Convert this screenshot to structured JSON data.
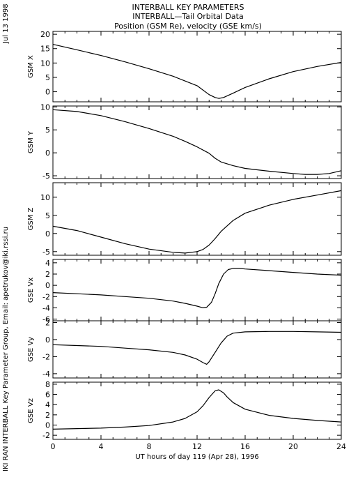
{
  "header": {
    "line1": "INTERBALL KEY PARAMETERS",
    "line2": "INTERBALL—Tail Orbital Data",
    "line3": "Position (GSM Re), velocity (GSE km/s)"
  },
  "side": {
    "date": "Jul 13 1998",
    "credit": "IKI RAN INTERBALL Key Parameter Group, Email: apetrukov@iki.rssi.ru"
  },
  "chart_data": [
    {
      "type": "line",
      "ylabel": "GSM X",
      "ylim": [
        -3.5,
        21
      ],
      "yticks": [
        0,
        5,
        10,
        15,
        20
      ],
      "ytick_labels": [
        "0",
        "5",
        "10",
        "15",
        "20"
      ],
      "x": [
        0,
        2,
        4,
        6,
        8,
        10,
        12,
        13,
        13.5,
        13.8,
        14.2,
        15,
        16,
        18,
        20,
        22,
        24
      ],
      "values": [
        16.5,
        14.6,
        12.6,
        10.4,
        8.0,
        5.4,
        2.1,
        -1.0,
        -2.0,
        -2.3,
        -2.0,
        -0.5,
        1.5,
        4.5,
        7.0,
        8.8,
        10.2
      ]
    },
    {
      "type": "line",
      "ylabel": "GSM Y",
      "ylim": [
        -5.6,
        10.2
      ],
      "yticks": [
        -5,
        0,
        5,
        10
      ],
      "ytick_labels": [
        "-5",
        "0",
        "5",
        "10"
      ],
      "x": [
        0,
        2,
        4,
        6,
        8,
        10,
        11,
        12,
        13,
        13.5,
        14,
        15,
        16,
        18,
        20,
        21,
        22,
        23,
        24
      ],
      "values": [
        9.4,
        9.0,
        8.1,
        6.8,
        5.3,
        3.6,
        2.5,
        1.3,
        -0.1,
        -1.2,
        -2.0,
        -2.8,
        -3.4,
        -4.0,
        -4.5,
        -4.7,
        -4.7,
        -4.5,
        -3.9
      ]
    },
    {
      "type": "line",
      "ylabel": "GSM Z",
      "ylim": [
        -6,
        14
      ],
      "yticks": [
        -5,
        0,
        5,
        10
      ],
      "ytick_labels": [
        "-5",
        "0",
        "5",
        "10"
      ],
      "x": [
        0,
        2,
        4,
        6,
        8,
        10,
        11,
        12,
        12.5,
        13,
        13.5,
        14,
        15,
        16,
        18,
        20,
        22,
        24
      ],
      "values": [
        2.0,
        0.8,
        -1.0,
        -2.8,
        -4.3,
        -5.2,
        -5.4,
        -5.0,
        -4.4,
        -3.2,
        -1.4,
        0.6,
        3.6,
        5.6,
        7.8,
        9.4,
        10.6,
        11.8
      ]
    },
    {
      "type": "line",
      "ylabel": "GSE Vx",
      "ylim": [
        -6.3,
        4.6
      ],
      "yticks": [
        -6,
        -4,
        -2,
        0,
        2,
        4
      ],
      "ytick_labels": [
        "-6",
        "-4",
        "-2",
        "0",
        "2",
        "4"
      ],
      "x": [
        0,
        2,
        4,
        6,
        8,
        10,
        11,
        12,
        12.5,
        12.8,
        13.2,
        13.5,
        13.8,
        14.2,
        14.6,
        15,
        15.5,
        16,
        18,
        20,
        22,
        24
      ],
      "values": [
        -1.3,
        -1.5,
        -1.7,
        -2.0,
        -2.3,
        -2.8,
        -3.2,
        -3.7,
        -4.0,
        -3.9,
        -3.0,
        -1.5,
        0.3,
        2.0,
        2.8,
        3.0,
        3.0,
        2.9,
        2.6,
        2.3,
        2.0,
        1.8
      ]
    },
    {
      "type": "line",
      "ylabel": "GSE Vy",
      "ylim": [
        -4.5,
        2.2
      ],
      "yticks": [
        -4,
        -2,
        0,
        2
      ],
      "ytick_labels": [
        "-4",
        "-2",
        "0",
        "2"
      ],
      "x": [
        0,
        2,
        4,
        6,
        8,
        10,
        11,
        12,
        12.5,
        12.8,
        13.0,
        13.5,
        14,
        14.5,
        15,
        16,
        18,
        20,
        22,
        24
      ],
      "values": [
        -0.6,
        -0.7,
        -0.8,
        -1.0,
        -1.2,
        -1.5,
        -1.8,
        -2.3,
        -2.7,
        -2.9,
        -2.6,
        -1.5,
        -0.4,
        0.4,
        0.75,
        0.9,
        0.95,
        0.95,
        0.9,
        0.85
      ]
    },
    {
      "type": "line",
      "ylabel": "GSE Vz",
      "ylim": [
        -2.8,
        8.4
      ],
      "yticks": [
        -2,
        0,
        2,
        4,
        6,
        8
      ],
      "ytick_labels": [
        "-2",
        "0",
        "2",
        "4",
        "6",
        "8"
      ],
      "x": [
        0,
        2,
        4,
        6,
        8,
        10,
        11,
        12,
        12.5,
        13,
        13.5,
        13.8,
        14.2,
        14.5,
        15,
        16,
        18,
        20,
        22,
        24
      ],
      "values": [
        -0.8,
        -0.7,
        -0.6,
        -0.4,
        -0.1,
        0.6,
        1.3,
        2.6,
        3.8,
        5.4,
        6.7,
        6.9,
        6.3,
        5.5,
        4.4,
        3.1,
        1.9,
        1.3,
        0.9,
        0.6
      ],
      "xlabel": "UT hours of day 119 (Apr 28), 1996",
      "xticks": [
        0,
        4,
        8,
        12,
        16,
        20,
        24
      ],
      "xtick_labels": [
        "0",
        "4",
        "8",
        "12",
        "16",
        "20",
        "24"
      ]
    }
  ]
}
